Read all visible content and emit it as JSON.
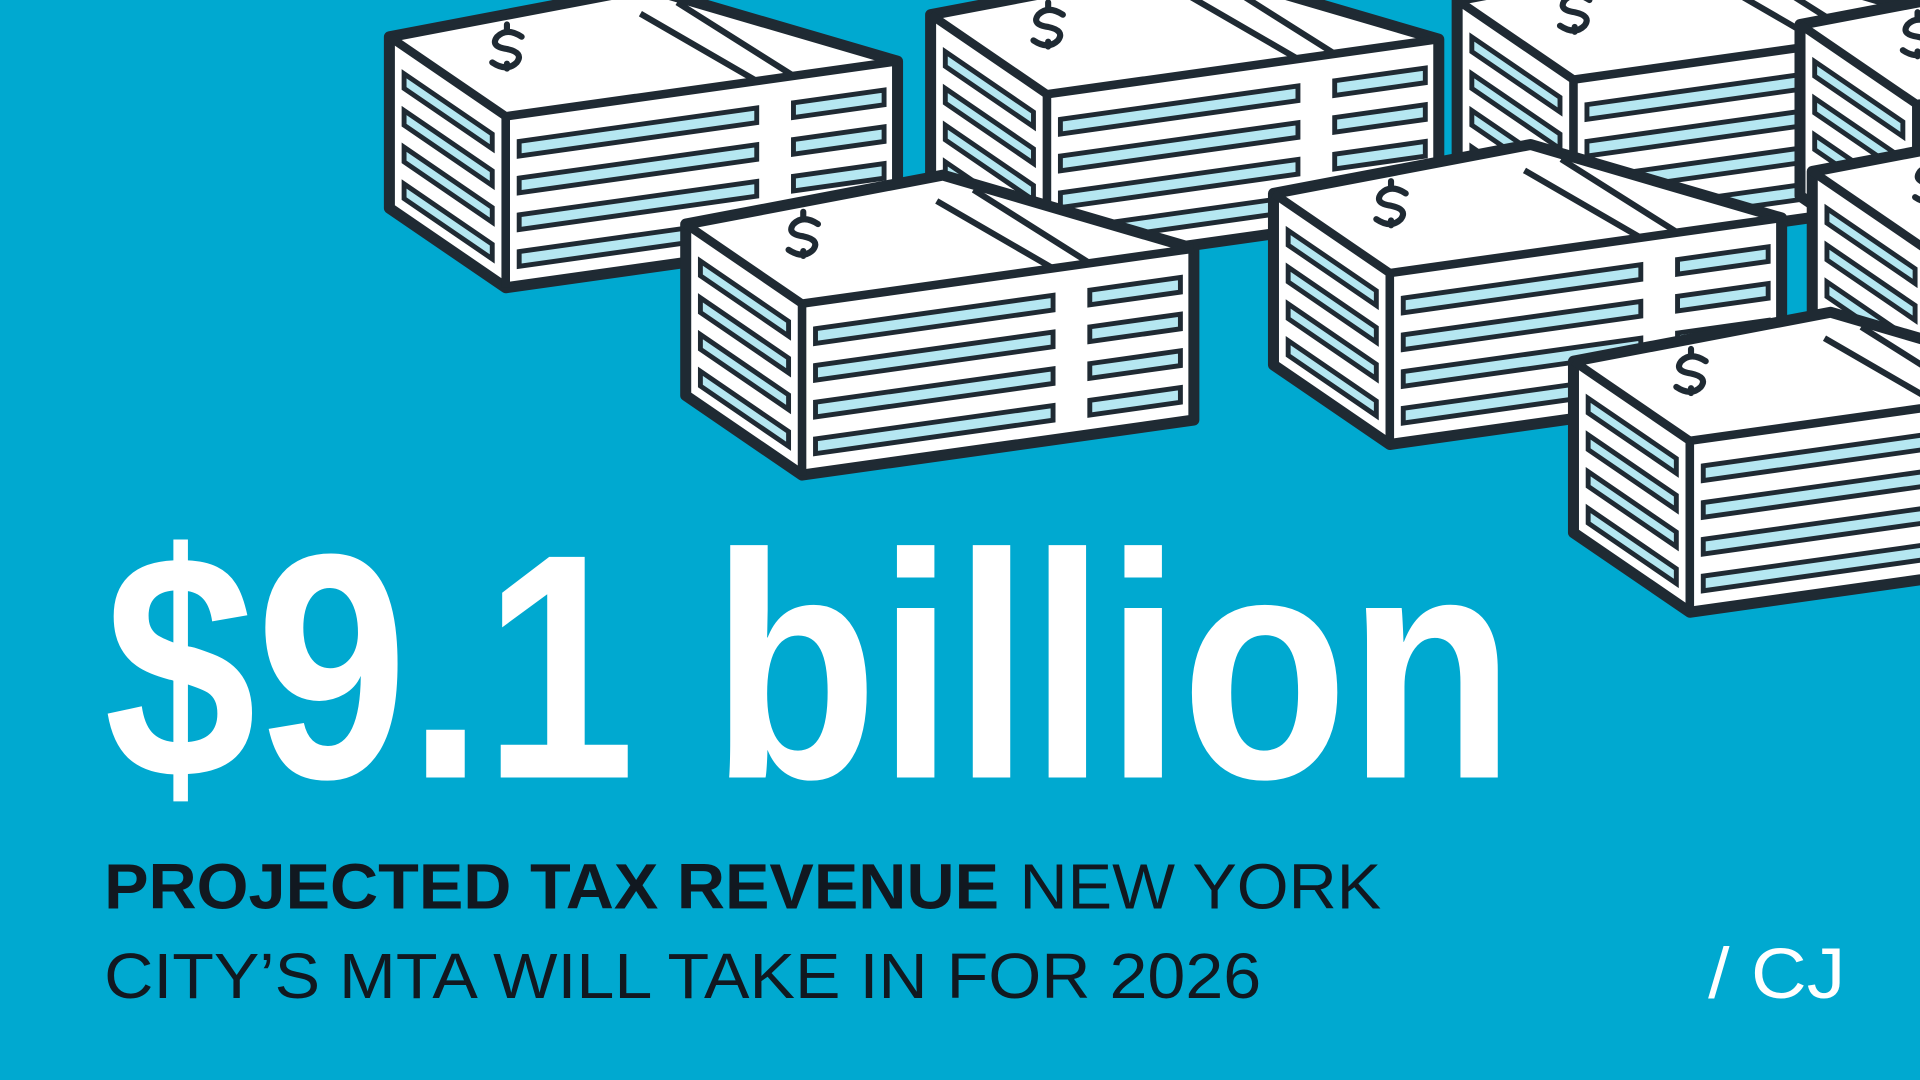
{
  "headline": "$9.1 billion",
  "description": {
    "emphasis": "PROJECTED TAX REVENUE",
    "lines": [
      "NEW YORK",
      "CITY’S MTA WILL TAKE IN FOR 2026"
    ]
  },
  "logo": "/ CJ"
}
